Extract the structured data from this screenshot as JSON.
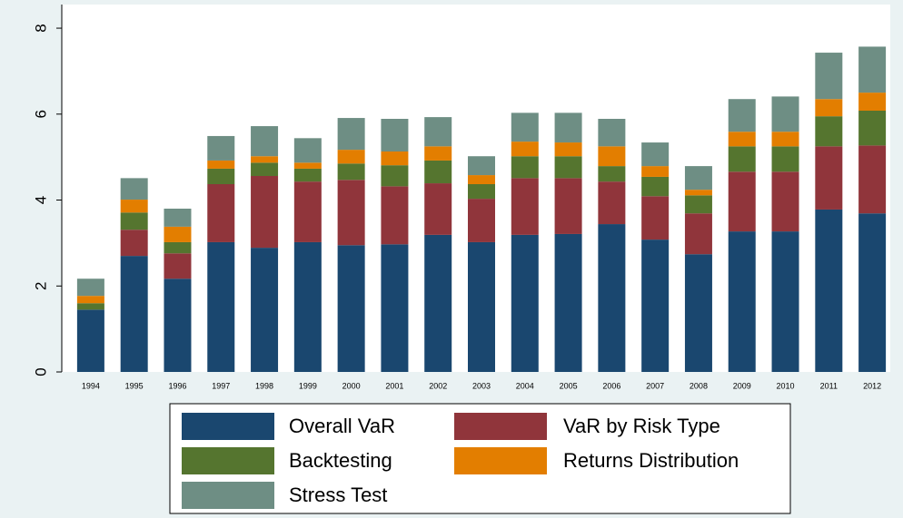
{
  "chart_data": {
    "type": "stacked_bar",
    "categories": [
      "1994",
      "1995",
      "1996",
      "1997",
      "1998",
      "1999",
      "2000",
      "2001",
      "2002",
      "2003",
      "2004",
      "2005",
      "2006",
      "2007",
      "2008",
      "2009",
      "2010",
      "2011",
      "2012"
    ],
    "series": [
      {
        "name": "Overall VaR",
        "color": "#1a476f",
        "values": [
          1.45,
          2.7,
          2.17,
          3.02,
          2.89,
          3.02,
          2.95,
          2.97,
          3.19,
          3.02,
          3.19,
          3.21,
          3.44,
          3.08,
          2.74,
          3.27,
          3.27,
          3.78,
          3.69
        ]
      },
      {
        "name": "VaR by Risk Type",
        "color": "#90353b",
        "values": [
          0,
          0.61,
          0.59,
          1.35,
          1.67,
          1.41,
          1.52,
          1.35,
          1.2,
          1.01,
          1.32,
          1.3,
          0.99,
          1.01,
          0.95,
          1.39,
          1.39,
          1.47,
          1.58
        ]
      },
      {
        "name": "Backtesting",
        "color": "#55752f",
        "values": [
          0.15,
          0.4,
          0.26,
          0.36,
          0.31,
          0.3,
          0.38,
          0.49,
          0.53,
          0.34,
          0.51,
          0.51,
          0.36,
          0.45,
          0.42,
          0.59,
          0.59,
          0.7,
          0.81
        ]
      },
      {
        "name": "Returns Distribution",
        "color": "#e37e00",
        "values": [
          0.17,
          0.3,
          0.36,
          0.19,
          0.15,
          0.14,
          0.32,
          0.32,
          0.33,
          0.21,
          0.34,
          0.32,
          0.46,
          0.25,
          0.13,
          0.34,
          0.34,
          0.4,
          0.42
        ]
      },
      {
        "name": "Stress Test",
        "color": "#6e8e84",
        "values": [
          0.4,
          0.5,
          0.42,
          0.57,
          0.7,
          0.57,
          0.74,
          0.76,
          0.68,
          0.44,
          0.67,
          0.69,
          0.64,
          0.55,
          0.55,
          0.76,
          0.82,
          1.08,
          1.07
        ]
      }
    ],
    "ylim": [
      0,
      8.55
    ],
    "yticks": [
      0,
      2,
      4,
      6,
      8
    ],
    "grid": false,
    "legend": "bottom"
  }
}
